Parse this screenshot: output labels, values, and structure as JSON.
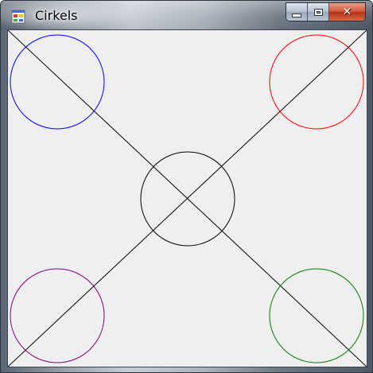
{
  "window": {
    "title": "Cirkels",
    "app_icon": "winforms-app-icon"
  },
  "caption_buttons": {
    "minimize_icon": "minimize-icon",
    "maximize_icon": "maximize-icon",
    "close_icon": "close-icon"
  },
  "drawing": {
    "background_color": "#efefef",
    "line_color": "#000000",
    "circles": [
      {
        "position": "top-left",
        "color": "#0000ff"
      },
      {
        "position": "top-right",
        "color": "#ff0000"
      },
      {
        "position": "center",
        "color": "#000000"
      },
      {
        "position": "bottom-left",
        "color": "#800080"
      },
      {
        "position": "bottom-right",
        "color": "#008000"
      }
    ]
  }
}
